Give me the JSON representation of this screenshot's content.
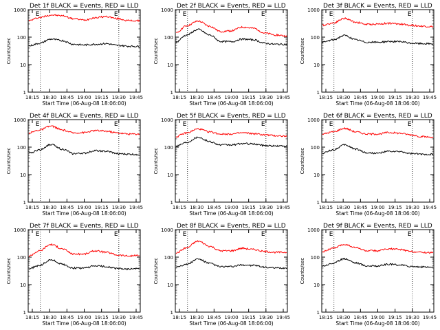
{
  "chart_data": [
    {
      "type": "line",
      "title": "Det 1f BLACK = Events, RED = LLD",
      "xlabel": "Start Time (06-Aug-08 18:06:00)",
      "ylabel": "Counts/sec",
      "yscale": "log",
      "ylim": [
        1,
        1000
      ],
      "xticks": [
        "18:15",
        "18:30",
        "18:45",
        "19:00",
        "19:15",
        "19:30",
        "19:45"
      ],
      "yticks": [
        "1",
        "10",
        "100",
        "1000"
      ],
      "markers": [
        {
          "label": "E",
          "at": "18:22"
        },
        {
          "label": "E",
          "at": "19:30"
        }
      ],
      "series": [
        {
          "color": "#ff0000",
          "values": [
            400,
            520,
            640,
            600,
            470,
            420,
            510,
            560,
            470,
            400,
            390
          ]
        },
        {
          "color": "#000000",
          "values": [
            48,
            60,
            85,
            75,
            55,
            52,
            55,
            58,
            50,
            47,
            46
          ]
        }
      ]
    },
    {
      "type": "line",
      "title": "Det 2f BLACK = Events, RED = LLD",
      "xlabel": "Start Time (06-Aug-08 18:06:00)",
      "ylabel": "Counts/sec",
      "yscale": "log",
      "ylim": [
        1,
        1000
      ],
      "xticks": [
        "18:15",
        "18:30",
        "18:45",
        "19:00",
        "19:15",
        "19:30",
        "19:45"
      ],
      "yticks": [
        "1",
        "10",
        "100",
        "1000"
      ],
      "markers": [
        {
          "label": "E",
          "at": "18:22"
        },
        {
          "label": "E",
          "at": "19:30"
        }
      ],
      "series": [
        {
          "color": "#ff0000",
          "values": [
            140,
            260,
            380,
            250,
            160,
            170,
            230,
            210,
            140,
            120,
            110
          ]
        },
        {
          "color": "#000000",
          "values": [
            65,
            120,
            190,
            120,
            70,
            68,
            85,
            80,
            60,
            55,
            55
          ]
        }
      ]
    },
    {
      "type": "line",
      "title": "Det 3f BLACK = Events, RED = LLD",
      "xlabel": "Start Time (06-Aug-08 18:06:00)",
      "ylabel": "Counts/sec",
      "yscale": "log",
      "ylim": [
        1,
        1000
      ],
      "xticks": [
        "18:15",
        "18:30",
        "18:45",
        "19:00",
        "19:15",
        "19:30",
        "19:45"
      ],
      "yticks": [
        "1",
        "10",
        "100",
        "1000"
      ],
      "markers": [
        {
          "label": "E",
          "at": "18:22"
        },
        {
          "label": "E",
          "at": "19:30"
        }
      ],
      "series": [
        {
          "color": "#ff0000",
          "values": [
            270,
            330,
            480,
            350,
            290,
            300,
            320,
            300,
            270,
            250,
            240
          ]
        },
        {
          "color": "#000000",
          "values": [
            65,
            80,
            115,
            80,
            65,
            65,
            70,
            68,
            60,
            58,
            57
          ]
        }
      ]
    },
    {
      "type": "line",
      "title": "Det 4f BLACK = Events, RED = LLD",
      "xlabel": "Start Time (06-Aug-08 18:06:00)",
      "ylabel": "Counts/sec",
      "yscale": "log",
      "ylim": [
        1,
        1000
      ],
      "xticks": [
        "18:15",
        "18:30",
        "18:45",
        "19:00",
        "19:15",
        "19:30",
        "19:45"
      ],
      "yticks": [
        "1",
        "10",
        "100",
        "1000"
      ],
      "markers": [
        {
          "label": "E",
          "at": "18:22"
        },
        {
          "label": "E",
          "at": "19:30"
        }
      ],
      "series": [
        {
          "color": "#ff0000",
          "values": [
            330,
            420,
            580,
            420,
            330,
            340,
            400,
            380,
            330,
            300,
            300
          ]
        },
        {
          "color": "#000000",
          "values": [
            60,
            80,
            125,
            85,
            58,
            60,
            75,
            70,
            58,
            55,
            54
          ]
        }
      ]
    },
    {
      "type": "line",
      "title": "Det 5f BLACK = Events, RED = LLD",
      "xlabel": "Start Time (06-Aug-08 18:06:00)",
      "ylabel": "Counts/sec",
      "yscale": "log",
      "ylim": [
        1,
        1000
      ],
      "xticks": [
        "18:15",
        "18:30",
        "18:45",
        "19:00",
        "19:15",
        "19:30",
        "19:45"
      ],
      "yticks": [
        "1",
        "10",
        "100",
        "1000"
      ],
      "markers": [
        {
          "label": "E",
          "at": "18:22"
        },
        {
          "label": "E",
          "at": "19:30"
        }
      ],
      "series": [
        {
          "color": "#ff0000",
          "values": [
            240,
            330,
            460,
            360,
            300,
            300,
            330,
            310,
            280,
            260,
            250
          ]
        },
        {
          "color": "#000000",
          "values": [
            110,
            150,
            230,
            160,
            120,
            120,
            135,
            130,
            115,
            110,
            110
          ]
        }
      ]
    },
    {
      "type": "line",
      "title": "Det 6f BLACK = Events, RED = LLD",
      "xlabel": "Start Time (06-Aug-08 18:06:00)",
      "ylabel": "Counts/sec",
      "yscale": "log",
      "ylim": [
        1,
        1000
      ],
      "xticks": [
        "18:15",
        "18:30",
        "18:45",
        "19:00",
        "19:15",
        "19:30",
        "19:45"
      ],
      "yticks": [
        "1",
        "10",
        "100",
        "1000"
      ],
      "markers": [
        {
          "label": "E",
          "at": "18:22"
        },
        {
          "label": "E",
          "at": "19:30"
        }
      ],
      "series": [
        {
          "color": "#ff0000",
          "values": [
            300,
            360,
            480,
            360,
            300,
            300,
            340,
            320,
            280,
            240,
            230
          ]
        },
        {
          "color": "#000000",
          "values": [
            60,
            80,
            120,
            85,
            62,
            60,
            70,
            68,
            58,
            55,
            55
          ]
        }
      ]
    },
    {
      "type": "line",
      "title": "Det 7f BLACK = Events, RED = LLD",
      "xlabel": "Start Time (06-Aug-08 18:06:00)",
      "ylabel": "Counts/sec",
      "yscale": "log",
      "ylim": [
        1,
        1000
      ],
      "xticks": [
        "18:15",
        "18:30",
        "18:45",
        "19:00",
        "19:15",
        "19:30",
        "19:45"
      ],
      "yticks": [
        "1",
        "10",
        "100",
        "1000"
      ],
      "markers": [
        {
          "label": "E",
          "at": "18:22"
        },
        {
          "label": "E",
          "at": "19:30"
        }
      ],
      "series": [
        {
          "color": "#ff0000",
          "values": [
            110,
            170,
            290,
            200,
            130,
            130,
            170,
            150,
            120,
            110,
            115
          ]
        },
        {
          "color": "#000000",
          "values": [
            38,
            50,
            80,
            55,
            40,
            40,
            48,
            45,
            38,
            37,
            38
          ]
        }
      ]
    },
    {
      "type": "line",
      "title": "Det 8f BLACK = Events, RED = LLD",
      "xlabel": "Start Time (06-Aug-08 18:06:00)",
      "ylabel": "Counts/sec",
      "yscale": "log",
      "ylim": [
        1,
        1000
      ],
      "xticks": [
        "18:15",
        "18:30",
        "18:45",
        "19:00",
        "19:15",
        "19:30",
        "19:45"
      ],
      "yticks": [
        "1",
        "10",
        "100",
        "1000"
      ],
      "markers": [
        {
          "label": "E",
          "at": "18:22"
        },
        {
          "label": "E",
          "at": "19:30"
        }
      ],
      "series": [
        {
          "color": "#ff0000",
          "values": [
            140,
            220,
            380,
            250,
            170,
            170,
            210,
            190,
            160,
            150,
            150
          ]
        },
        {
          "color": "#000000",
          "values": [
            45,
            55,
            85,
            60,
            45,
            45,
            52,
            50,
            43,
            40,
            40
          ]
        }
      ]
    },
    {
      "type": "line",
      "title": "Det 9f BLACK = Events, RED = LLD",
      "xlabel": "Start Time (06-Aug-08 18:06:00)",
      "ylabel": "Counts/sec",
      "yscale": "log",
      "ylim": [
        1,
        1000
      ],
      "xticks": [
        "18:15",
        "18:30",
        "18:45",
        "19:00",
        "19:15",
        "19:30",
        "19:45"
      ],
      "yticks": [
        "1",
        "10",
        "100",
        "1000"
      ],
      "markers": [
        {
          "label": "E",
          "at": "18:22"
        },
        {
          "label": "E",
          "at": "19:30"
        }
      ],
      "series": [
        {
          "color": "#ff0000",
          "values": [
            160,
            210,
            290,
            220,
            170,
            170,
            200,
            190,
            160,
            150,
            145
          ]
        },
        {
          "color": "#000000",
          "values": [
            48,
            60,
            88,
            62,
            48,
            48,
            55,
            52,
            46,
            44,
            43
          ]
        }
      ]
    }
  ]
}
